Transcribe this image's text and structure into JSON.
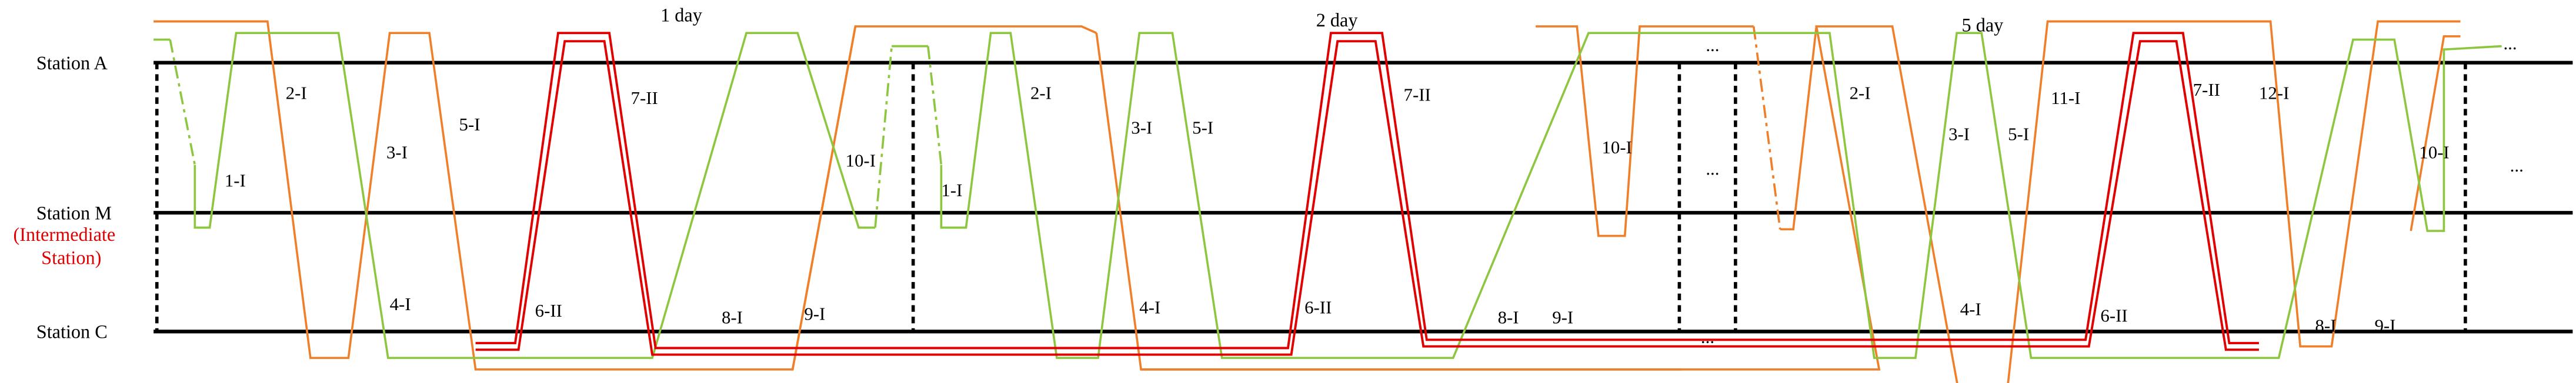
{
  "stations": [
    "Station A",
    "Station M",
    "(Intermediate",
    "Station)",
    "Station C"
  ],
  "days": [
    "1 day",
    "2 day",
    "5 day"
  ],
  "train_labels": [
    "1-I",
    "2-I",
    "3-I",
    "5-I",
    "4-I",
    "6-II",
    "7-II",
    "8-I",
    "9-I",
    "10-I",
    "1-I",
    "2-I",
    "3-I",
    "5-I",
    "4-I",
    "6-II",
    "7-II",
    "8-I",
    "9-I",
    "10-I",
    "2-I",
    "3-I",
    "5-I",
    "11-I",
    "4-I",
    "6-II",
    "7-II",
    "12-I",
    "8-I",
    "9-I",
    "10-I"
  ],
  "ellipses": [
    "...",
    "...",
    "...",
    "...",
    "..."
  ]
}
